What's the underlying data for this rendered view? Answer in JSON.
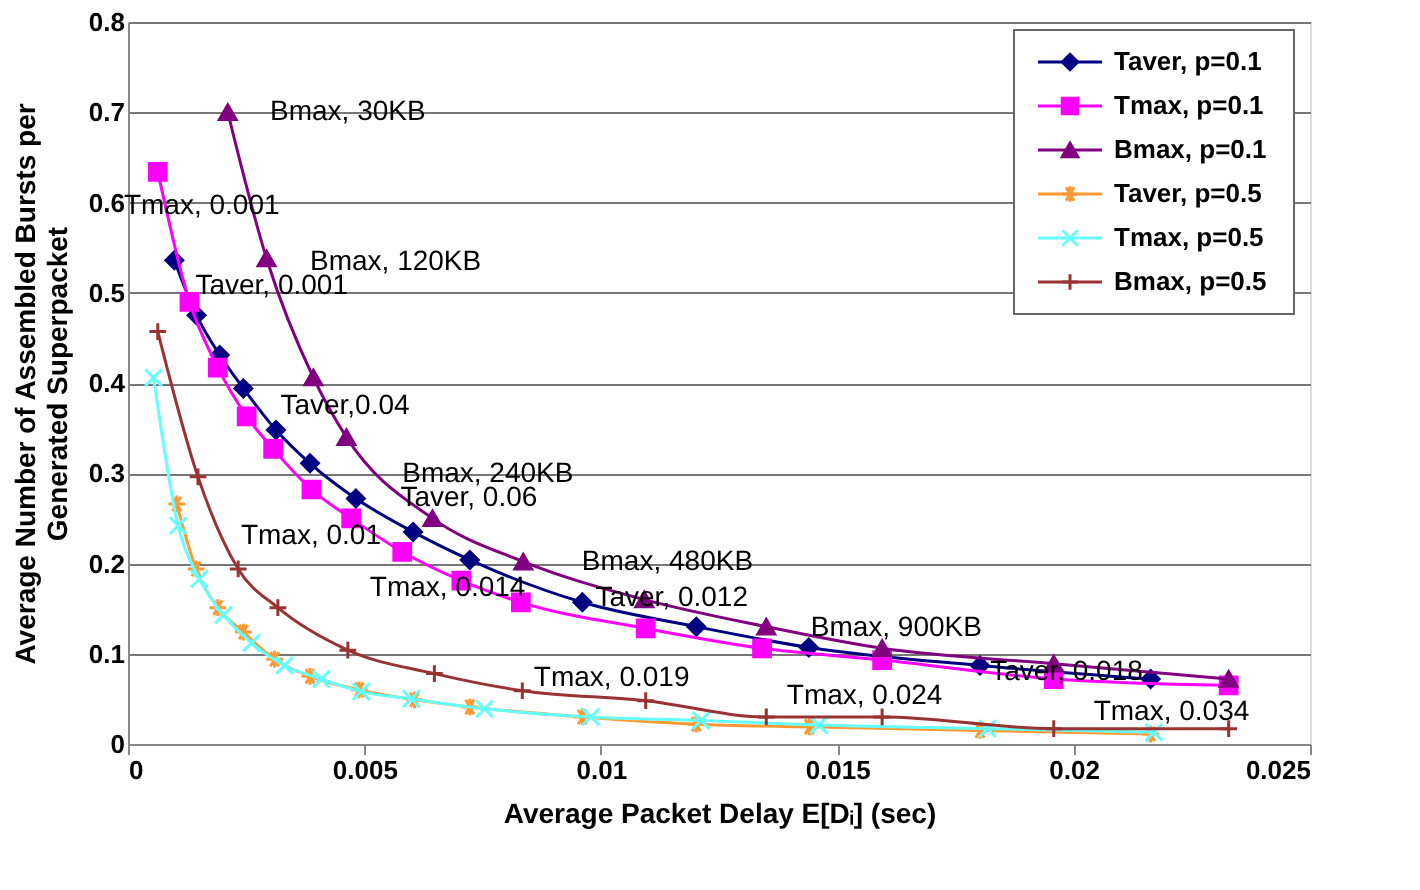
{
  "chart_data": {
    "type": "line",
    "xlabel": "Average Packet Delay E[Dᵢ] (sec)",
    "ylabel": "Average Number of Assembled Bursts per\nGenerated Superpacket",
    "xlim": [
      0,
      0.025
    ],
    "xticks": [
      0,
      0.005,
      0.01,
      0.015,
      0.02,
      0.025
    ],
    "ylim": [
      0,
      0.8
    ],
    "yticks": [
      0,
      0.1,
      0.2,
      0.3,
      0.4,
      0.5,
      0.6,
      0.7,
      0.8
    ],
    "grid": "y",
    "legend": "top right",
    "series": [
      {
        "name": "Taver, p=0.1",
        "color": "#000080",
        "marker": "diamond",
        "x": [
          0.00098,
          0.00145,
          0.00194,
          0.00244,
          0.00313,
          0.00385,
          0.00482,
          0.00603,
          0.00723,
          0.00961,
          0.01202,
          0.0144,
          0.01802,
          0.02163
        ],
        "values": [
          0.536,
          0.475,
          0.431,
          0.394,
          0.348,
          0.311,
          0.272,
          0.235,
          0.204,
          0.157,
          0.13,
          0.107,
          0.087,
          0.072
        ]
      },
      {
        "name": "Tmax, p=0.1",
        "color": "#ff00ff",
        "marker": "square",
        "x": [
          0.00063,
          0.0013,
          0.0019,
          0.00251,
          0.00307,
          0.00388,
          0.00472,
          0.0058,
          0.00705,
          0.00831,
          0.01095,
          0.01341,
          0.01595,
          0.01958,
          0.02328
        ],
        "values": [
          0.634,
          0.49,
          0.417,
          0.363,
          0.327,
          0.282,
          0.25,
          0.213,
          0.181,
          0.157,
          0.128,
          0.106,
          0.093,
          0.072,
          0.065
        ]
      },
      {
        "name": "Bmax, p=0.1",
        "color": "#800080",
        "marker": "triangle",
        "x": [
          0.00211,
          0.00293,
          0.00392,
          0.00462,
          0.00644,
          0.00836,
          0.01092,
          0.0135,
          0.01595,
          0.01958,
          0.02328
        ],
        "values": [
          0.7,
          0.538,
          0.406,
          0.34,
          0.25,
          0.202,
          0.16,
          0.13,
          0.106,
          0.089,
          0.072
        ]
      },
      {
        "name": "Taver, p=0.5",
        "color": "#ff9933",
        "marker": "cross",
        "x": [
          0.00103,
          0.00144,
          0.0019,
          0.00244,
          0.0031,
          0.00385,
          0.00489,
          0.00606,
          0.00723,
          0.00961,
          0.01202,
          0.01441,
          0.01802,
          0.02163
        ],
        "values": [
          0.266,
          0.194,
          0.151,
          0.124,
          0.094,
          0.075,
          0.06,
          0.049,
          0.041,
          0.03,
          0.022,
          0.019,
          0.015,
          0.011
        ]
      },
      {
        "name": "Tmax, p=0.5",
        "color": "#66ffff",
        "marker": "cross",
        "x": [
          0.00054,
          0.00106,
          0.00151,
          0.00202,
          0.00261,
          0.00331,
          0.00409,
          0.00493,
          0.00599,
          0.00754,
          0.00979,
          0.01212,
          0.01461,
          0.01818,
          0.0217
        ],
        "values": [
          0.406,
          0.242,
          0.183,
          0.143,
          0.112,
          0.087,
          0.072,
          0.058,
          0.05,
          0.039,
          0.03,
          0.026,
          0.021,
          0.017,
          0.013
        ]
      },
      {
        "name": "Bmax, p=0.5",
        "color": "#993333",
        "marker": "plus",
        "x": [
          0.00063,
          0.00148,
          0.00233,
          0.00317,
          0.00465,
          0.00648,
          0.00834,
          0.01095,
          0.0135,
          0.01595,
          0.01958,
          0.02328
        ],
        "values": [
          0.457,
          0.296,
          0.194,
          0.151,
          0.104,
          0.078,
          0.059,
          0.048,
          0.03,
          0.03,
          0.017,
          0.017
        ]
      }
    ],
    "annotations": [
      "Bmax, 30KB",
      "Tmax, 0.001",
      "Bmax, 120KB",
      "Taver, 0.001",
      "Taver,0.04",
      "Bmax, 240KB",
      "Taver, 0.06",
      "Tmax, 0.01",
      "Bmax, 480KB",
      "Tmax, 0.014",
      "Taver, 0.012",
      "Bmax, 900KB",
      "Tmax, 0.019",
      "Tmax, 0.024",
      "Taver, 0.018",
      "Tmax, 0.034"
    ]
  }
}
